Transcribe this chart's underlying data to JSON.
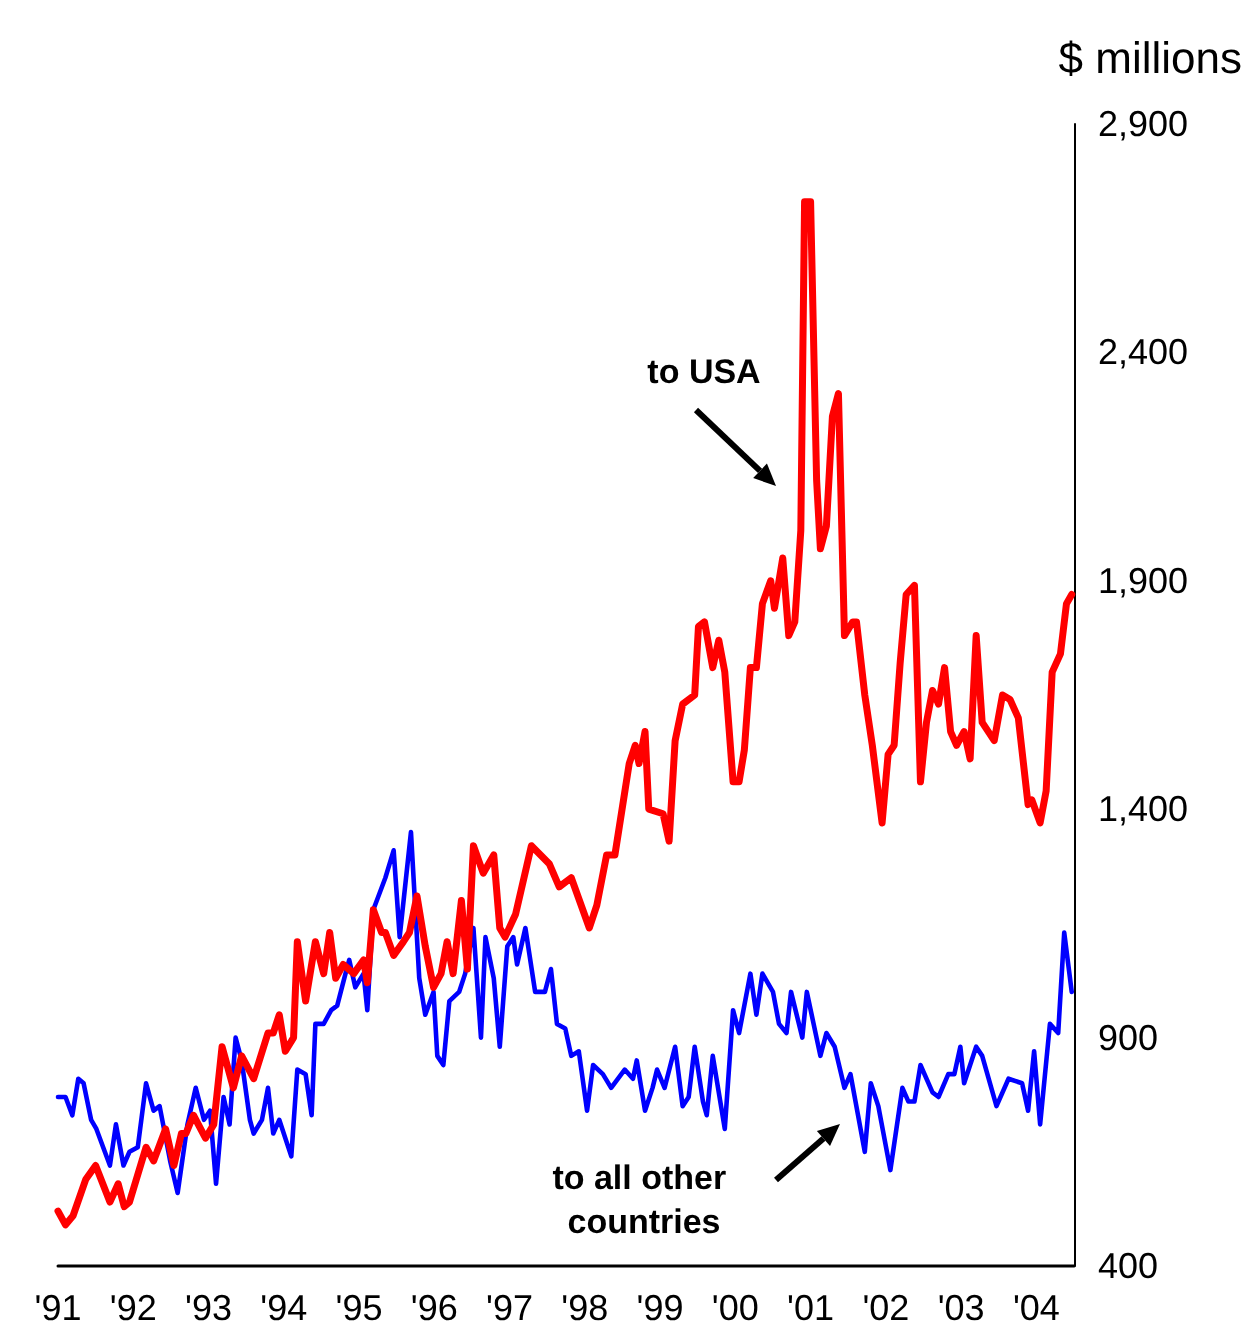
{
  "chart_data": {
    "type": "line",
    "ylabel": "$ millions",
    "xlim": [
      1991,
      2004.5
    ],
    "ylim": [
      400,
      2900
    ],
    "xticks": [
      {
        "value": 1991,
        "label": "'91"
      },
      {
        "value": 1992,
        "label": "'92"
      },
      {
        "value": 1993,
        "label": "'93"
      },
      {
        "value": 1994,
        "label": "'94"
      },
      {
        "value": 1995,
        "label": "'95"
      },
      {
        "value": 1996,
        "label": "'96"
      },
      {
        "value": 1997,
        "label": "'97"
      },
      {
        "value": 1998,
        "label": "'98"
      },
      {
        "value": 1999,
        "label": "'99"
      },
      {
        "value": 2000,
        "label": "'00"
      },
      {
        "value": 2001,
        "label": "'01"
      },
      {
        "value": 2002,
        "label": "'02"
      },
      {
        "value": 2003,
        "label": "'03"
      },
      {
        "value": 2004,
        "label": "'04"
      }
    ],
    "yticks": [
      {
        "value": 400,
        "label": "400"
      },
      {
        "value": 900,
        "label": "900"
      },
      {
        "value": 1400,
        "label": "1,400"
      },
      {
        "value": 1900,
        "label": "1,900"
      },
      {
        "value": 2400,
        "label": "2,400"
      },
      {
        "value": 2900,
        "label": "2,900"
      }
    ],
    "grid": false,
    "marker": "none",
    "line_style": "solid",
    "series": [
      {
        "color": "#0000ff",
        "x": [
          1991.0,
          1991.1,
          1991.19,
          1991.27,
          1991.34,
          1991.44,
          1991.51,
          1991.69,
          1991.77,
          1991.87,
          1991.95,
          1992.06,
          1992.17,
          1992.27,
          1992.35,
          1992.49,
          1992.59,
          1992.72,
          1992.83,
          1992.94,
          1993.02,
          1993.1,
          1993.2,
          1993.28,
          1993.36,
          1993.44,
          1993.55,
          1993.6,
          1993.71,
          1993.79,
          1993.86,
          1993.94,
          1994.1,
          1994.18,
          1994.29,
          1994.37,
          1994.42,
          1994.53,
          1994.63,
          1994.71,
          1994.82,
          1994.87,
          1994.95,
          1995.06,
          1995.11,
          1995.19,
          1995.35,
          1995.46,
          1995.54,
          1995.69,
          1995.8,
          1995.88,
          1995.99,
          1996.04,
          1996.12,
          1996.2,
          1996.33,
          1996.41,
          1996.52,
          1996.62,
          1996.68,
          1996.79,
          1996.87,
          1996.97,
          1997.05,
          1997.1,
          1997.21,
          1997.34,
          1997.47,
          1997.55,
          1997.63,
          1997.74,
          1997.82,
          1997.92,
          1998.03,
          1998.11,
          1998.24,
          1998.35,
          1998.53,
          1998.64,
          1998.69,
          1998.8,
          1998.9,
          1998.96,
          1999.06,
          1999.2,
          1999.3,
          1999.38,
          1999.46,
          1999.57,
          1999.62,
          1999.7,
          1999.86,
          1999.97,
          2000.05,
          2000.2,
          2000.28,
          2000.36,
          2000.5,
          2000.58,
          2000.68,
          2000.74,
          2000.89,
          2000.95,
          2001.13,
          2001.21,
          2001.32,
          2001.45,
          2001.53,
          2001.72,
          2001.8,
          2001.9,
          2002.06,
          2002.22,
          2002.3,
          2002.38,
          2002.46,
          2002.62,
          2002.7,
          2002.83,
          2002.91,
          2002.99,
          2003.04,
          2003.2,
          2003.28,
          2003.47,
          2003.63,
          2003.81,
          2003.89,
          2003.97,
          2004.05,
          2004.18,
          2004.29,
          2004.37,
          2004.47
        ],
        "values": [
          770,
          770,
          730,
          810,
          800,
          720,
          700,
          620,
          710,
          620,
          650,
          660,
          800,
          740,
          750,
          630,
          560,
          710,
          790,
          720,
          740,
          580,
          770,
          710,
          900,
          850,
          720,
          690,
          720,
          790,
          690,
          720,
          640,
          830,
          820,
          730,
          930,
          930,
          960,
          970,
          1040,
          1070,
          1010,
          1040,
          960,
          1180,
          1250,
          1310,
          1120,
          1350,
          1030,
          950,
          1000,
          860,
          840,
          980,
          1000,
          1040,
          1140,
          900,
          1120,
          1030,
          880,
          1100,
          1120,
          1060,
          1140,
          1000,
          1000,
          1050,
          930,
          920,
          860,
          870,
          740,
          840,
          820,
          790,
          830,
          810,
          850,
          740,
          790,
          830,
          790,
          880,
          750,
          770,
          880,
          760,
          730,
          860,
          700,
          960,
          910,
          1040,
          950,
          1040,
          1000,
          930,
          910,
          1000,
          900,
          1000,
          860,
          910,
          880,
          790,
          820,
          650,
          800,
          750,
          610,
          790,
          760,
          760,
          840,
          780,
          770,
          820,
          820,
          880,
          800,
          880,
          860,
          750,
          810,
          800,
          740,
          870,
          710,
          930,
          910,
          1130,
          1000
        ]
      },
      {
        "color": "#ff0000",
        "x": [
          1991.0,
          1991.1,
          1991.2,
          1991.37,
          1991.5,
          1991.69,
          1991.8,
          1991.88,
          1991.95,
          1992.17,
          1992.27,
          1992.43,
          1992.54,
          1992.64,
          1992.7,
          1992.8,
          1992.96,
          1993.07,
          1993.18,
          1993.33,
          1993.44,
          1993.6,
          1993.79,
          1993.86,
          1993.94,
          1994.02,
          1994.13,
          1994.18,
          1994.29,
          1994.42,
          1994.53,
          1994.61,
          1994.69,
          1994.79,
          1994.93,
          1995.06,
          1995.11,
          1995.19,
          1995.3,
          1995.35,
          1995.46,
          1995.59,
          1995.67,
          1995.77,
          1995.88,
          1995.99,
          1996.09,
          1996.17,
          1996.25,
          1996.36,
          1996.44,
          1996.52,
          1996.65,
          1996.79,
          1996.87,
          1996.94,
          1997.08,
          1997.29,
          1997.53,
          1997.66,
          1997.82,
          1998.06,
          1998.16,
          1998.29,
          1998.4,
          1998.59,
          1998.67,
          1998.72,
          1998.8,
          1998.85,
          1999.04,
          1999.12,
          1999.2,
          1999.3,
          1999.46,
          1999.51,
          1999.59,
          1999.7,
          1999.78,
          1999.86,
          1999.97,
          2000.05,
          2000.12,
          2000.2,
          2000.28,
          2000.36,
          2000.47,
          2000.52,
          2000.63,
          2000.71,
          2000.79,
          2000.87,
          2000.92,
          2001.0,
          2001.08,
          2001.13,
          2001.21,
          2001.29,
          2001.37,
          2001.45,
          2001.56,
          2001.61,
          2001.72,
          2001.82,
          2001.95,
          2002.03,
          2002.11,
          2002.19,
          2002.27,
          2002.38,
          2002.46,
          2002.54,
          2002.62,
          2002.7,
          2002.78,
          2002.86,
          2002.94,
          2003.04,
          2003.12,
          2003.2,
          2003.28,
          2003.44,
          2003.55,
          2003.65,
          2003.76,
          2003.89,
          2003.94,
          2004.05,
          2004.13,
          2004.21,
          2004.32,
          2004.4,
          2004.47
        ],
        "values": [
          520,
          490,
          510,
          590,
          620,
          540,
          580,
          530,
          540,
          660,
          630,
          700,
          620,
          690,
          690,
          730,
          680,
          710,
          880,
          790,
          860,
          810,
          910,
          910,
          950,
          870,
          900,
          1110,
          980,
          1110,
          1040,
          1130,
          1030,
          1060,
          1040,
          1070,
          1020,
          1180,
          1130,
          1130,
          1080,
          1110,
          1130,
          1210,
          1100,
          1010,
          1040,
          1110,
          1040,
          1200,
          1050,
          1320,
          1260,
          1300,
          1140,
          1120,
          1170,
          1320,
          1280,
          1230,
          1250,
          1140,
          1190,
          1300,
          1300,
          1500,
          1540,
          1500,
          1570,
          1400,
          1390,
          1330,
          1550,
          1630,
          1650,
          1800,
          1810,
          1710,
          1770,
          1700,
          1460,
          1460,
          1530,
          1710,
          1710,
          1850,
          1900,
          1840,
          1950,
          1780,
          1810,
          2010,
          2730,
          2730,
          2120,
          1970,
          2020,
          2260,
          2310,
          1780,
          1810,
          1810,
          1650,
          1540,
          1370,
          1520,
          1540,
          1720,
          1870,
          1890,
          1460,
          1590,
          1660,
          1630,
          1710,
          1570,
          1540,
          1570,
          1510,
          1780,
          1590,
          1550,
          1650,
          1640,
          1600,
          1410,
          1420,
          1370,
          1440,
          1700,
          1740,
          1850,
          1870
        ]
      }
    ],
    "annotations": [
      "to USA",
      "to all other countries"
    ]
  }
}
